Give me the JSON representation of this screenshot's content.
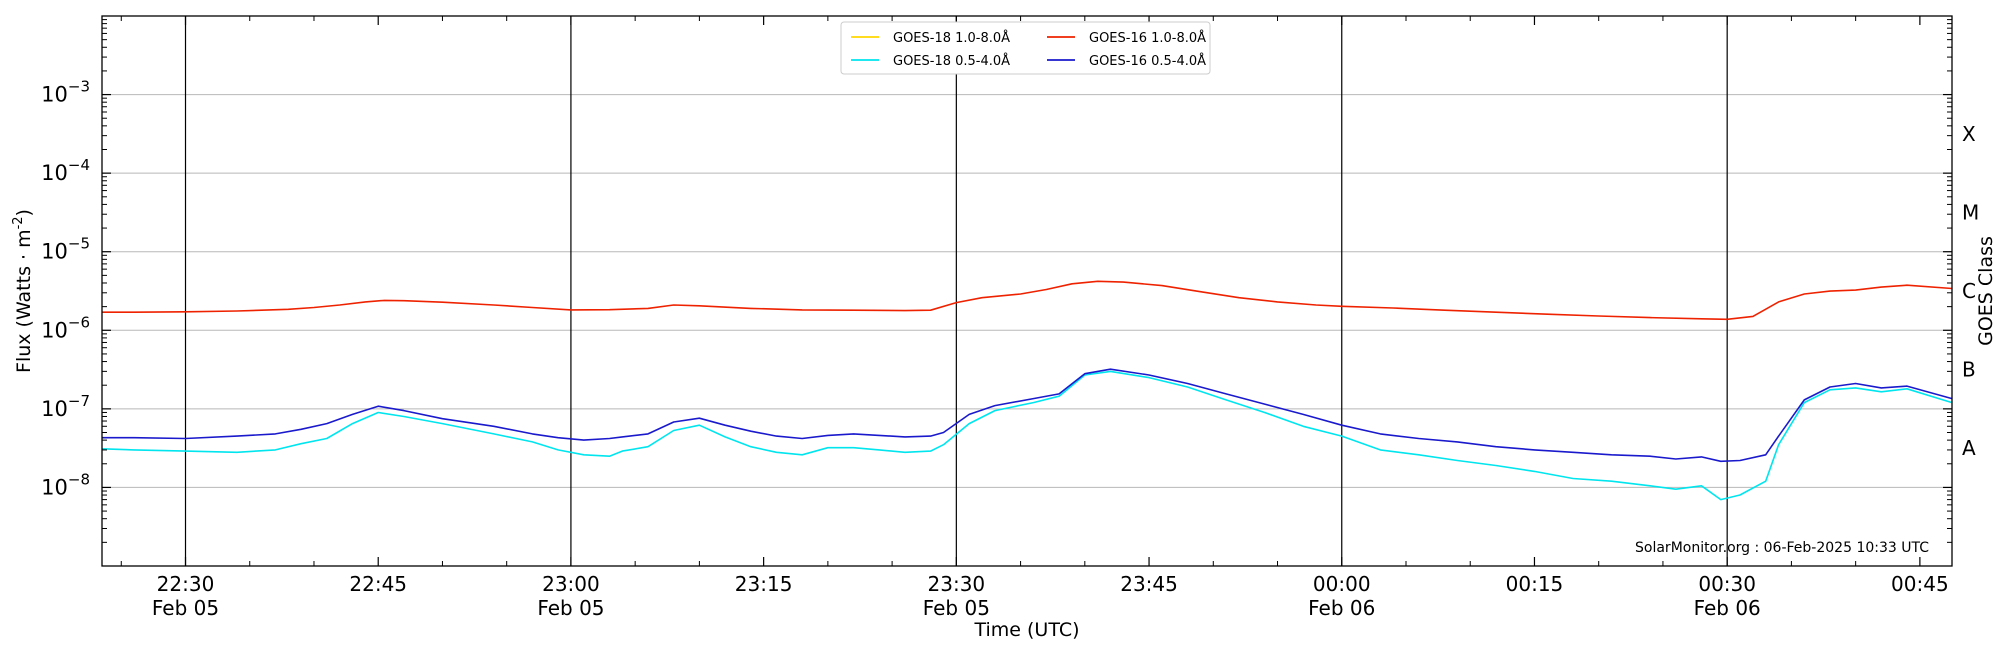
{
  "chart_data": {
    "type": "line",
    "ylabel": "Flux (Watts · m",
    "ylabel_sup": "-2",
    "ylabel_close": ")",
    "xlabel": "Time (UTC)",
    "y2label": "GOES Class",
    "yscale": "log",
    "ylim": [
      1e-09,
      0.01
    ],
    "xlim_minutes": [
      -6.5,
      137.5
    ],
    "grid": "horizontal at decades",
    "legend_placement": "top-center",
    "watermark": "SolarMonitor.org : 06-Feb-2025 10:33 UTC",
    "y_ticks": [
      {
        "value": 1e-08,
        "base": "10",
        "exp": "−8"
      },
      {
        "value": 1e-07,
        "base": "10",
        "exp": "−7"
      },
      {
        "value": 1e-06,
        "base": "10",
        "exp": "−6"
      },
      {
        "value": 1e-05,
        "base": "10",
        "exp": "−5"
      },
      {
        "value": 0.0001,
        "base": "10",
        "exp": "−4"
      },
      {
        "value": 0.001,
        "base": "10",
        "exp": "−3"
      }
    ],
    "goes_classes": [
      {
        "label": "A",
        "value": 3.16e-08
      },
      {
        "label": "B",
        "value": 3.16e-07
      },
      {
        "label": "C",
        "value": 3.16e-06
      },
      {
        "label": "M",
        "value": 3.16e-05
      },
      {
        "label": "X",
        "value": 0.000316
      }
    ],
    "x_ticks": [
      {
        "minute": 0,
        "time": "22:30",
        "date": "Feb 05"
      },
      {
        "minute": 15,
        "time": "22:45",
        "date": ""
      },
      {
        "minute": 30,
        "time": "23:00",
        "date": "Feb 05"
      },
      {
        "minute": 45,
        "time": "23:15",
        "date": ""
      },
      {
        "minute": 60,
        "time": "23:30",
        "date": "Feb 05"
      },
      {
        "minute": 75,
        "time": "23:45",
        "date": ""
      },
      {
        "minute": 90,
        "time": "00:00",
        "date": "Feb 06"
      },
      {
        "minute": 105,
        "time": "00:15",
        "date": ""
      },
      {
        "minute": 120,
        "time": "00:30",
        "date": "Feb 06"
      },
      {
        "minute": 135,
        "time": "00:45",
        "date": ""
      }
    ],
    "vlines_minutes": [
      0,
      30,
      60,
      90,
      120
    ],
    "x_reference": "Feb 05 22:30 UTC",
    "series": [
      {
        "name": "GOES-18 1.0-8.0",
        "color": "#ffd700",
        "points": []
      },
      {
        "name": "GOES-16 1.0-8.0",
        "color": "#ee2200",
        "points": [
          [
            -6.5,
            1.7e-06
          ],
          [
            -4,
            1.7e-06
          ],
          [
            0,
            1.72e-06
          ],
          [
            4,
            1.76e-06
          ],
          [
            8,
            1.85e-06
          ],
          [
            10,
            1.95e-06
          ],
          [
            12,
            2.1e-06
          ],
          [
            14,
            2.3e-06
          ],
          [
            15.5,
            2.4e-06
          ],
          [
            17,
            2.38e-06
          ],
          [
            20,
            2.28e-06
          ],
          [
            24,
            2.1e-06
          ],
          [
            27,
            1.95e-06
          ],
          [
            30,
            1.82e-06
          ],
          [
            33,
            1.83e-06
          ],
          [
            36,
            1.9e-06
          ],
          [
            38,
            2.1e-06
          ],
          [
            40,
            2.05e-06
          ],
          [
            44,
            1.9e-06
          ],
          [
            48,
            1.82e-06
          ],
          [
            52,
            1.8e-06
          ],
          [
            56,
            1.78e-06
          ],
          [
            58,
            1.8e-06
          ],
          [
            60,
            2.25e-06
          ],
          [
            62,
            2.6e-06
          ],
          [
            65,
            2.9e-06
          ],
          [
            67,
            3.3e-06
          ],
          [
            69,
            3.9e-06
          ],
          [
            71,
            4.2e-06
          ],
          [
            73,
            4.1e-06
          ],
          [
            76,
            3.7e-06
          ],
          [
            79,
            3.1e-06
          ],
          [
            82,
            2.6e-06
          ],
          [
            85,
            2.3e-06
          ],
          [
            88,
            2.1e-06
          ],
          [
            90,
            2.02e-06
          ],
          [
            94,
            1.92e-06
          ],
          [
            98,
            1.8e-06
          ],
          [
            102,
            1.7e-06
          ],
          [
            106,
            1.6e-06
          ],
          [
            110,
            1.52e-06
          ],
          [
            114,
            1.45e-06
          ],
          [
            118,
            1.4e-06
          ],
          [
            120,
            1.38e-06
          ],
          [
            122,
            1.5e-06
          ],
          [
            124,
            2.3e-06
          ],
          [
            126,
            2.9e-06
          ],
          [
            128,
            3.15e-06
          ],
          [
            130,
            3.25e-06
          ],
          [
            132,
            3.55e-06
          ],
          [
            134,
            3.75e-06
          ],
          [
            137.5,
            3.4e-06
          ]
        ]
      },
      {
        "name": "GOES-18 0.5-4.0",
        "color": "#00e5ee",
        "points": [
          [
            -6.5,
            3.1e-08
          ],
          [
            -4,
            3e-08
          ],
          [
            0,
            2.9e-08
          ],
          [
            4,
            2.8e-08
          ],
          [
            7,
            3e-08
          ],
          [
            9,
            3.6e-08
          ],
          [
            11,
            4.2e-08
          ],
          [
            13,
            6.5e-08
          ],
          [
            15,
            9e-08
          ],
          [
            17,
            8e-08
          ],
          [
            20,
            6.5e-08
          ],
          [
            24,
            4.8e-08
          ],
          [
            27,
            3.8e-08
          ],
          [
            29,
            3e-08
          ],
          [
            31,
            2.6e-08
          ],
          [
            33,
            2.5e-08
          ],
          [
            34,
            2.9e-08
          ],
          [
            36,
            3.3e-08
          ],
          [
            38,
            5.3e-08
          ],
          [
            40,
            6.2e-08
          ],
          [
            42,
            4.4e-08
          ],
          [
            44,
            3.3e-08
          ],
          [
            46,
            2.8e-08
          ],
          [
            48,
            2.6e-08
          ],
          [
            50,
            3.2e-08
          ],
          [
            52,
            3.2e-08
          ],
          [
            54,
            3e-08
          ],
          [
            56,
            2.8e-08
          ],
          [
            58,
            2.9e-08
          ],
          [
            59,
            3.5e-08
          ],
          [
            61,
            6.5e-08
          ],
          [
            63,
            9.5e-08
          ],
          [
            66,
            1.2e-07
          ],
          [
            68,
            1.45e-07
          ],
          [
            70,
            2.7e-07
          ],
          [
            72,
            3e-07
          ],
          [
            75,
            2.5e-07
          ],
          [
            78,
            1.9e-07
          ],
          [
            81,
            1.3e-07
          ],
          [
            84,
            9e-08
          ],
          [
            87,
            6e-08
          ],
          [
            90,
            4.5e-08
          ],
          [
            93,
            3e-08
          ],
          [
            96,
            2.6e-08
          ],
          [
            99,
            2.2e-08
          ],
          [
            102,
            1.9e-08
          ],
          [
            105,
            1.6e-08
          ],
          [
            108,
            1.3e-08
          ],
          [
            111,
            1.2e-08
          ],
          [
            114,
            1.05e-08
          ],
          [
            116,
            9.5e-09
          ],
          [
            118,
            1.05e-08
          ],
          [
            119.5,
            7e-09
          ],
          [
            121,
            8e-09
          ],
          [
            123,
            1.2e-08
          ],
          [
            124,
            3.5e-08
          ],
          [
            126,
            1.2e-07
          ],
          [
            128,
            1.75e-07
          ],
          [
            130,
            1.85e-07
          ],
          [
            132,
            1.65e-07
          ],
          [
            134,
            1.8e-07
          ],
          [
            137.5,
            1.2e-07
          ]
        ]
      },
      {
        "name": "GOES-16 0.5-4.0",
        "color": "#1a1acc",
        "points": [
          [
            -6.5,
            4.3e-08
          ],
          [
            -4,
            4.3e-08
          ],
          [
            0,
            4.2e-08
          ],
          [
            4,
            4.5e-08
          ],
          [
            7,
            4.8e-08
          ],
          [
            9,
            5.5e-08
          ],
          [
            11,
            6.5e-08
          ],
          [
            13,
            8.5e-08
          ],
          [
            15,
            1.08e-07
          ],
          [
            17,
            9.5e-08
          ],
          [
            20,
            7.5e-08
          ],
          [
            24,
            6e-08
          ],
          [
            27,
            4.8e-08
          ],
          [
            29,
            4.3e-08
          ],
          [
            31,
            4e-08
          ],
          [
            33,
            4.2e-08
          ],
          [
            34,
            4.4e-08
          ],
          [
            36,
            4.8e-08
          ],
          [
            38,
            6.8e-08
          ],
          [
            40,
            7.6e-08
          ],
          [
            42,
            6.2e-08
          ],
          [
            44,
            5.2e-08
          ],
          [
            46,
            4.5e-08
          ],
          [
            48,
            4.2e-08
          ],
          [
            50,
            4.6e-08
          ],
          [
            52,
            4.8e-08
          ],
          [
            54,
            4.6e-08
          ],
          [
            56,
            4.4e-08
          ],
          [
            58,
            4.5e-08
          ],
          [
            59,
            5e-08
          ],
          [
            61,
            8.5e-08
          ],
          [
            63,
            1.1e-07
          ],
          [
            66,
            1.35e-07
          ],
          [
            68,
            1.55e-07
          ],
          [
            70,
            2.8e-07
          ],
          [
            72,
            3.2e-07
          ],
          [
            75,
            2.7e-07
          ],
          [
            78,
            2.1e-07
          ],
          [
            81,
            1.55e-07
          ],
          [
            84,
            1.15e-07
          ],
          [
            87,
            8.5e-08
          ],
          [
            90,
            6.2e-08
          ],
          [
            93,
            4.8e-08
          ],
          [
            96,
            4.2e-08
          ],
          [
            99,
            3.8e-08
          ],
          [
            102,
            3.3e-08
          ],
          [
            105,
            3e-08
          ],
          [
            108,
            2.8e-08
          ],
          [
            111,
            2.6e-08
          ],
          [
            114,
            2.5e-08
          ],
          [
            116,
            2.3e-08
          ],
          [
            118,
            2.45e-08
          ],
          [
            119.5,
            2.15e-08
          ],
          [
            121,
            2.2e-08
          ],
          [
            123,
            2.6e-08
          ],
          [
            124,
            4.5e-08
          ],
          [
            126,
            1.3e-07
          ],
          [
            128,
            1.9e-07
          ],
          [
            130,
            2.1e-07
          ],
          [
            132,
            1.85e-07
          ],
          [
            134,
            1.95e-07
          ],
          [
            137.5,
            1.35e-07
          ]
        ]
      }
    ],
    "legend": [
      {
        "label": "GOES-18 1.0-8.0",
        "color": "#ffd700"
      },
      {
        "label": "GOES-18 0.5-4.0",
        "color": "#00e5ee"
      },
      {
        "label": "GOES-16 1.0-8.0",
        "color": "#ee2200"
      },
      {
        "label": "GOES-16 0.5-4.0",
        "color": "#1a1acc"
      }
    ],
    "legend_unit": "Å"
  }
}
